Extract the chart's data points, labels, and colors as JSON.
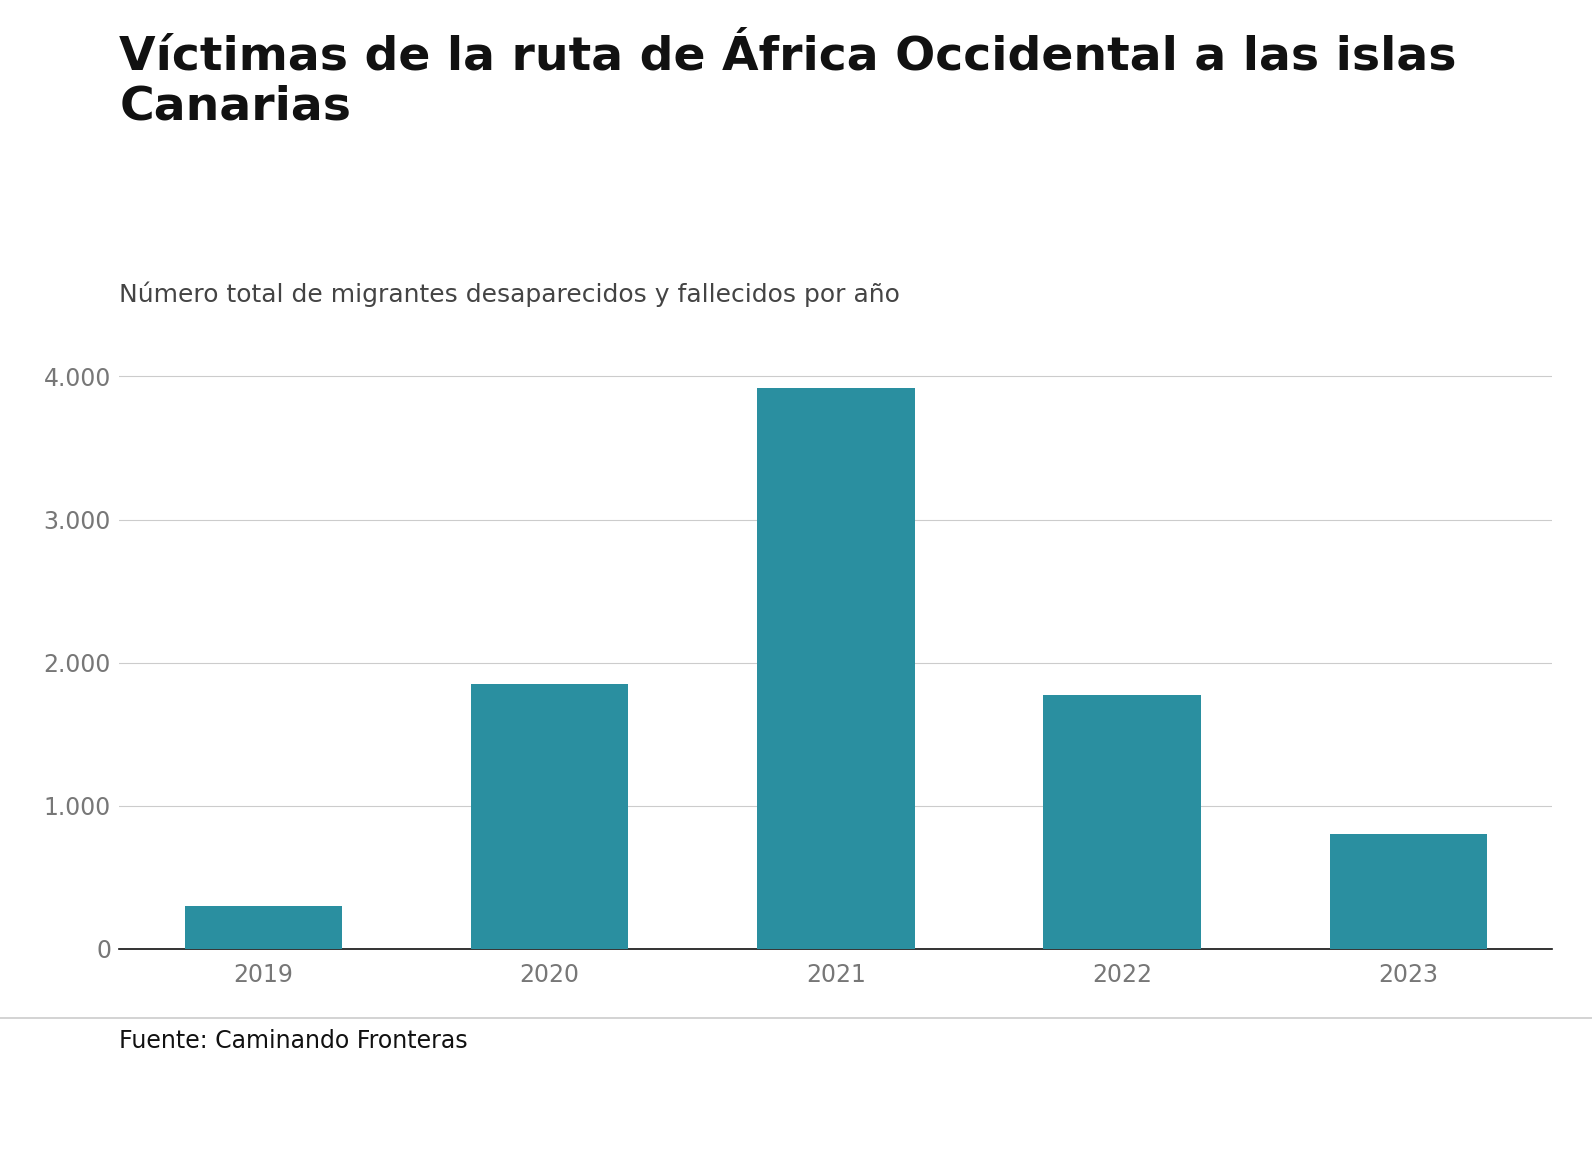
{
  "title": "Víctimas de la ruta de África Occidental a las islas\nCanarias",
  "subtitle": "Número total de migrantes desaparecidos y fallecidos por año",
  "categories": [
    "2019",
    "2020",
    "2021",
    "2022",
    "2023"
  ],
  "values": [
    302,
    1851,
    3922,
    1775,
    800
  ],
  "bar_color": "#2a8fa0",
  "background_color": "#ffffff",
  "ylim": [
    0,
    4300
  ],
  "yticks": [
    0,
    1000,
    2000,
    3000,
    4000
  ],
  "ytick_labels": [
    "0",
    "1.000",
    "2.000",
    "3.000",
    "4.000"
  ],
  "source_text": "Fuente: Caminando Fronteras",
  "title_fontsize": 34,
  "subtitle_fontsize": 18,
  "tick_fontsize": 17,
  "source_fontsize": 17,
  "title_color": "#111111",
  "subtitle_color": "#444444",
  "tick_color": "#777777",
  "grid_color": "#cccccc",
  "axis_color": "#111111",
  "bbc_box_color": "#111111",
  "bbc_text_color": "#ffffff",
  "bar_width": 0.55
}
